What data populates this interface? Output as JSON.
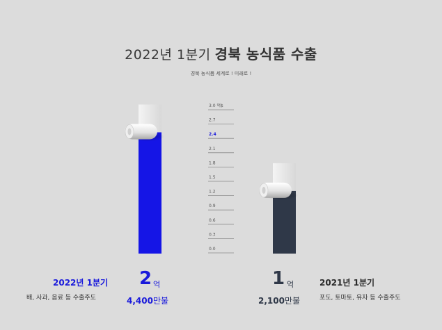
{
  "header": {
    "title_regular": "2022년 1분기",
    "title_bold": "경북 농식품 수출",
    "subtitle": "경북 농식품 세계로 ! 미래로 !"
  },
  "left": {
    "period": "2022년 1분기",
    "crops": "배, 사과, 음료 등 수출주도",
    "amount_big": "2",
    "amount_big_unit": "억",
    "amount_rest": "4,400",
    "amount_rest_unit": "만불"
  },
  "right": {
    "period": "2021년 1분기",
    "crops": "포도, 토마토, 유자 등 수출주도",
    "amount_big": "1",
    "amount_big_unit": "억",
    "amount_rest": "2,100",
    "amount_rest_unit": "만불"
  },
  "colors": {
    "bar_2022": "#1515e6",
    "bar_2021": "#2f3848",
    "highlight_tick": "#1a1adb",
    "background": "#dcdcdc"
  },
  "chart_data": {
    "type": "bar",
    "categories": [
      "2022년 1분기",
      "2021년 1분기"
    ],
    "values": [
      2.44,
      1.21
    ],
    "ylim": [
      0,
      3.0
    ],
    "y_ticks": [
      "0.0",
      "0.3",
      "0.6",
      "0.9",
      "1.2",
      "1.5",
      "1.8",
      "2.1",
      "2.4",
      "2.7",
      "3.0 억$"
    ],
    "highlighted_tick": "2.4",
    "grid": false,
    "bar_colors": [
      "#1515e6",
      "#2f3848"
    ]
  }
}
